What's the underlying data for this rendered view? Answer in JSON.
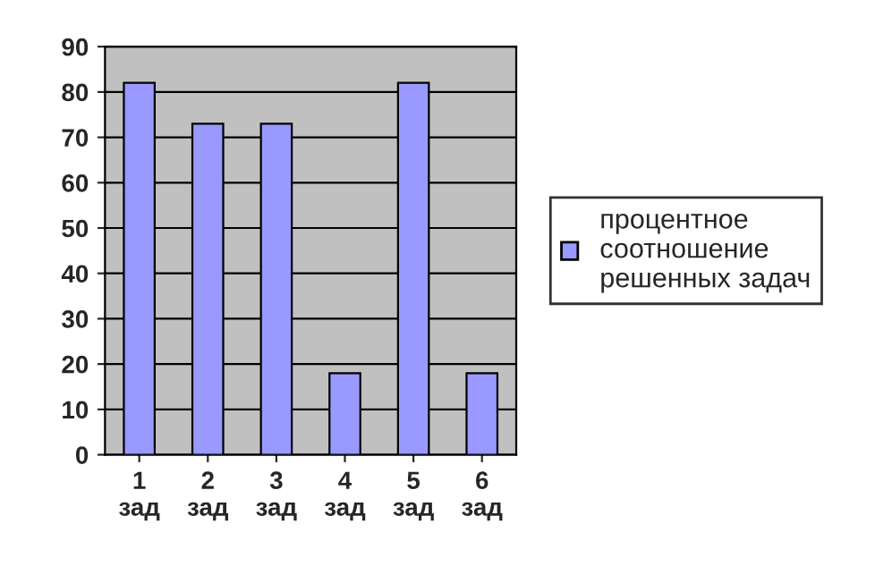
{
  "chart_data": {
    "type": "bar",
    "categories": [
      "1\nзад",
      "2\nзад",
      "3\nзад",
      "4\nзад",
      "5\nзад",
      "6\nзад"
    ],
    "series": [
      {
        "name": "процентное\nсоотношение\nрешенных задач",
        "color": "#9999ff",
        "values": [
          82,
          73,
          73,
          18,
          82,
          18
        ]
      }
    ],
    "ylim": [
      0,
      90
    ],
    "yticks": [
      0,
      10,
      20,
      30,
      40,
      50,
      60,
      70,
      80,
      90
    ],
    "grid": "y",
    "legend": "right"
  }
}
